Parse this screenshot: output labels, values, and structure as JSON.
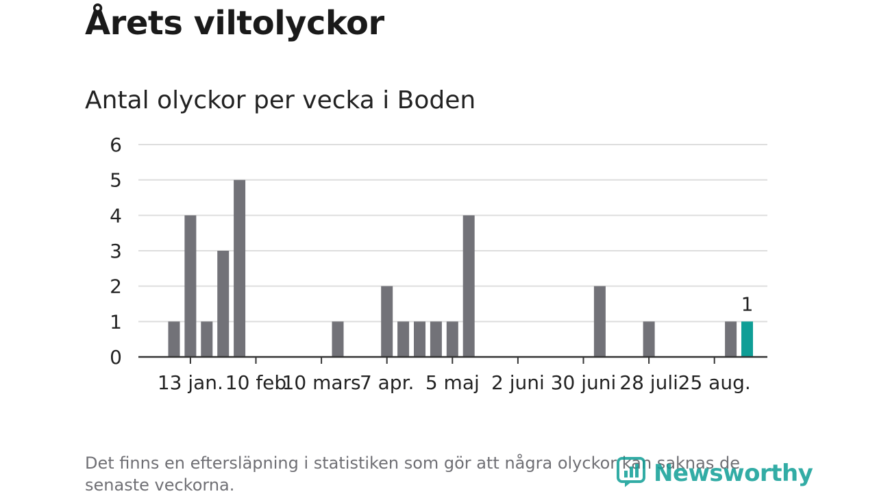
{
  "header": {
    "title": "Årets viltolyckor",
    "subtitle": "Antal olyckor per vecka i Boden"
  },
  "footnote": "Det finns en eftersläpning i statistiken som gör att några olyckor kan saknas de senaste veckorna.",
  "brand": {
    "name": "Newsworthy",
    "icon": "newsworthy-logo-icon"
  },
  "colors": {
    "bar": "#727278",
    "highlight": "#0f9e96",
    "grid": "#dddddd",
    "axis": "#333333",
    "text": "#222222"
  },
  "chart_data": {
    "type": "bar",
    "title": "Antal olyckor per vecka i Boden",
    "xlabel": "",
    "ylabel": "",
    "ylim": [
      0,
      6
    ],
    "yticks": [
      0,
      1,
      2,
      3,
      4,
      5,
      6
    ],
    "grid": true,
    "categories": [
      "2024-01-01",
      "2024-01-08",
      "2024-01-15",
      "2024-01-22",
      "2024-01-29",
      "2024-02-05",
      "2024-02-12",
      "2024-02-19",
      "2024-02-26",
      "2024-03-04",
      "2024-03-11",
      "2024-03-18",
      "2024-03-25",
      "2024-04-01",
      "2024-04-08",
      "2024-04-15",
      "2024-04-22",
      "2024-04-29",
      "2024-05-06",
      "2024-05-13",
      "2024-05-20",
      "2024-05-27",
      "2024-06-03",
      "2024-06-10",
      "2024-06-17",
      "2024-06-24",
      "2024-07-01",
      "2024-07-08",
      "2024-07-15",
      "2024-07-22",
      "2024-07-29",
      "2024-08-05",
      "2024-08-12",
      "2024-08-19",
      "2024-08-26",
      "2024-09-02"
    ],
    "values": [
      1,
      4,
      1,
      3,
      5,
      0,
      0,
      0,
      0,
      0,
      1,
      0,
      0,
      2,
      1,
      1,
      1,
      1,
      4,
      0,
      0,
      0,
      0,
      0,
      0,
      0,
      2,
      0,
      0,
      1,
      0,
      0,
      0,
      0,
      1,
      1
    ],
    "highlight_index": 35,
    "data_labels": [
      {
        "index": 35,
        "text": "1"
      }
    ],
    "x_tick_labels": [
      {
        "index": 1,
        "label": "13 jan."
      },
      {
        "index": 5,
        "label": "10 feb"
      },
      {
        "index": 9,
        "label": "10 mars"
      },
      {
        "index": 13,
        "label": "7 apr."
      },
      {
        "index": 17,
        "label": "5 maj"
      },
      {
        "index": 21,
        "label": "2 juni"
      },
      {
        "index": 25,
        "label": "30 juni"
      },
      {
        "index": 29,
        "label": "28 juli"
      },
      {
        "index": 33,
        "label": "25 aug."
      }
    ]
  }
}
